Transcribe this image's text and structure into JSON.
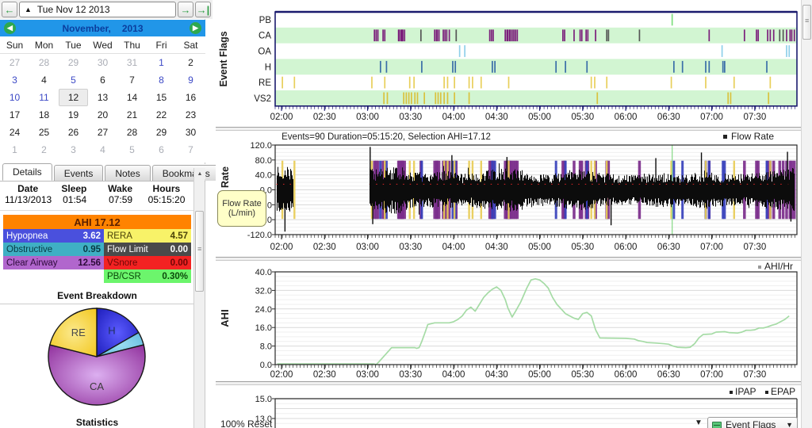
{
  "nav": {
    "prev_label": "←",
    "next_label": "→",
    "last_label": "→|",
    "combo_caret": "▲",
    "date_label": "Tue Nov 12 2013"
  },
  "calendar": {
    "prev_label": "◀",
    "next_label": "▶",
    "month_label": "November,",
    "year_label": "2013",
    "day_headers": [
      "Sun",
      "Mon",
      "Tue",
      "Wed",
      "Thu",
      "Fri",
      "Sat"
    ],
    "weeks": [
      [
        {
          "d": "27",
          "c": "muted"
        },
        {
          "d": "28",
          "c": "muted"
        },
        {
          "d": "29",
          "c": "muted"
        },
        {
          "d": "30",
          "c": "muted"
        },
        {
          "d": "31",
          "c": "muted"
        },
        {
          "d": "1",
          "c": "link"
        },
        {
          "d": "2",
          "c": "norm"
        }
      ],
      [
        {
          "d": "3",
          "c": "link"
        },
        {
          "d": "4",
          "c": "norm"
        },
        {
          "d": "5",
          "c": "link"
        },
        {
          "d": "6",
          "c": "norm"
        },
        {
          "d": "7",
          "c": "norm"
        },
        {
          "d": "8",
          "c": "link"
        },
        {
          "d": "9",
          "c": "link"
        }
      ],
      [
        {
          "d": "10",
          "c": "link"
        },
        {
          "d": "11",
          "c": "link"
        },
        {
          "d": "12",
          "c": "sel"
        },
        {
          "d": "13",
          "c": "norm"
        },
        {
          "d": "14",
          "c": "norm"
        },
        {
          "d": "15",
          "c": "norm"
        },
        {
          "d": "16",
          "c": "norm"
        }
      ],
      [
        {
          "d": "17",
          "c": "norm"
        },
        {
          "d": "18",
          "c": "norm"
        },
        {
          "d": "19",
          "c": "norm"
        },
        {
          "d": "20",
          "c": "norm"
        },
        {
          "d": "21",
          "c": "norm"
        },
        {
          "d": "22",
          "c": "norm"
        },
        {
          "d": "23",
          "c": "norm"
        }
      ],
      [
        {
          "d": "24",
          "c": "norm"
        },
        {
          "d": "25",
          "c": "norm"
        },
        {
          "d": "26",
          "c": "norm"
        },
        {
          "d": "27",
          "c": "norm"
        },
        {
          "d": "28",
          "c": "norm"
        },
        {
          "d": "29",
          "c": "norm"
        },
        {
          "d": "30",
          "c": "norm"
        }
      ],
      [
        {
          "d": "1",
          "c": "muted"
        },
        {
          "d": "2",
          "c": "muted"
        },
        {
          "d": "3",
          "c": "muted"
        },
        {
          "d": "4",
          "c": "muted"
        },
        {
          "d": "5",
          "c": "muted"
        },
        {
          "d": "6",
          "c": "muted"
        },
        {
          "d": "7",
          "c": "muted"
        }
      ]
    ]
  },
  "tabs": [
    {
      "label": "Details",
      "active": true
    },
    {
      "label": "Events",
      "active": false
    },
    {
      "label": "Notes",
      "active": false
    },
    {
      "label": "Bookmarks",
      "active": false
    }
  ],
  "details": {
    "summary_headers": [
      "Date",
      "Sleep",
      "Wake",
      "Hours"
    ],
    "summary_values": [
      "11/13/2013",
      "01:54",
      "07:59",
      "05:15:20"
    ],
    "ahi_label": "AHI 17.12",
    "ahi_bg": "#ff8300",
    "stats_left": [
      {
        "label": "Hypopnea",
        "value": "3.62",
        "bg": "#4a50dd",
        "fg": "#ffffff"
      },
      {
        "label": "Obstructive",
        "value": "0.95",
        "bg": "#3fb0c4",
        "fg": "#083a42"
      },
      {
        "label": "Clear Airway",
        "value": "12.56",
        "bg": "#b166cd",
        "fg": "#2d0a3a"
      }
    ],
    "stats_right": [
      {
        "label": "RERA",
        "value": "4.57",
        "bg": "#f8f268",
        "fg": "#4a4208"
      },
      {
        "label": "Flow Limit",
        "value": "0.00",
        "bg": "#4a4a4a",
        "fg": "#ffffff"
      },
      {
        "label": "VSnore",
        "value": "0.00",
        "bg": "#f32222",
        "fg": "#6e0606"
      },
      {
        "label": "PB/CSR",
        "value": "0.30%",
        "bg": "#6cf56c",
        "fg": "#0a4a0a"
      }
    ],
    "event_breakdown_title": "Event Breakdown",
    "statistics_title": "Statistics"
  },
  "bottom_bar": {
    "zoom_label": "100%",
    "reset_label": "Reset",
    "caret": "▼",
    "flag_combo_label": "Event Flags"
  },
  "chart_data": [
    {
      "id": "pie",
      "type": "pie",
      "title": "Event Breakdown",
      "slices": [
        {
          "label": "H",
          "value": 3.62,
          "c1": "#5b5bff",
          "c2": "#1d1dbb",
          "text": "#203060"
        },
        {
          "label": "",
          "value": 0.95,
          "c1": "#9adef2",
          "c2": "#5fb9dd",
          "text": "#333333"
        },
        {
          "label": "CA",
          "value": 12.56,
          "c1": "#dcaff0",
          "c2": "#90309c",
          "text": "#3a3a3a"
        },
        {
          "label": "RE",
          "value": 4.57,
          "c1": "#fbe98c",
          "c2": "#f3c71e",
          "text": "#4a4a4a"
        }
      ]
    },
    {
      "id": "event_flags",
      "type": "event-ticks",
      "ylabel": "Event Flags",
      "x_domain": [
        1.926,
        7.99
      ],
      "x_ticks": [
        {
          "t": 2.0,
          "label": "02:00"
        },
        {
          "t": 2.5,
          "label": "02:30"
        },
        {
          "t": 3.0,
          "label": "03:00"
        },
        {
          "t": 3.5,
          "label": "03:30"
        },
        {
          "t": 4.0,
          "label": "04:00"
        },
        {
          "t": 4.5,
          "label": "04:30"
        },
        {
          "t": 5.0,
          "label": "05:00"
        },
        {
          "t": 5.5,
          "label": "05:30"
        },
        {
          "t": 6.0,
          "label": "06:00"
        },
        {
          "t": 6.5,
          "label": "06:30"
        },
        {
          "t": 7.0,
          "label": "07:00"
        },
        {
          "t": 7.5,
          "label": "07:30"
        }
      ],
      "rows": [
        {
          "label": "PB",
          "color": "#7ede7e",
          "band": false,
          "ticks": [
            6.54
          ]
        },
        {
          "label": "CA",
          "color": "#7b1f7b",
          "band": true,
          "ticks": [
            3.08,
            3.1,
            3.12,
            3.18,
            3.2,
            3.36,
            3.37,
            3.39,
            3.4,
            3.41,
            3.43,
            3.62,
            3.78,
            3.8,
            3.81,
            3.83,
            3.88,
            3.9,
            3.92,
            3.95,
            4.03,
            4.42,
            4.44,
            4.46,
            4.6,
            4.62,
            4.63,
            4.65,
            4.66,
            4.68,
            4.7,
            4.72,
            4.74,
            5.27,
            5.29,
            5.4,
            5.47,
            5.49,
            5.54,
            5.56,
            5.65,
            5.78,
            5.8,
            6.16,
            6.97,
            7.38,
            7.52,
            7.54,
            7.65,
            7.68,
            7.72,
            7.79,
            7.83,
            7.87,
            7.91,
            7.93,
            7.96
          ],
          "gray": [
            3.62,
            4.03,
            5.78,
            5.8,
            6.16,
            7.79,
            7.83
          ]
        },
        {
          "label": "OA",
          "color": "#8fd0ea",
          "band": false,
          "ticks": [
            4.07,
            4.13,
            7.12,
            7.87,
            7.9
          ]
        },
        {
          "label": "H",
          "color": "#3a6ea8",
          "band": true,
          "ticks": [
            3.15,
            3.22,
            3.63,
            3.99,
            4.02,
            4.45,
            4.48,
            5.19,
            5.3,
            5.55,
            6.56,
            6.66,
            6.93,
            6.97,
            7.13,
            7.15,
            7.64
          ]
        },
        {
          "label": "RE",
          "color": "#e8cf5a",
          "band": false,
          "ticks": [
            2.01,
            2.15,
            3.05,
            3.2,
            3.49,
            3.54,
            3.89,
            3.93,
            4.01,
            4.18,
            4.22,
            4.32,
            4.64,
            5.6,
            5.64,
            5.78,
            6.53,
            6.93,
            7.26,
            7.68
          ]
        },
        {
          "label": "VS2",
          "color": "#d9c23e",
          "band": true,
          "ticks": [
            3.19,
            3.23,
            3.42,
            3.45,
            3.48,
            3.51,
            3.55,
            3.58,
            3.66,
            3.79,
            3.82,
            3.85,
            3.89,
            3.93,
            4.01,
            4.18,
            5.67,
            7.19,
            7.22,
            7.66
          ]
        }
      ]
    },
    {
      "id": "flow",
      "type": "waveform",
      "title": "Events=90 Duration=05:15:20, Selection AHI=17.12",
      "legend": "Flow Rate",
      "ylabel": "Flow Rate",
      "tooltip_line1": "Flow Rate",
      "tooltip_line2": "(L/min)",
      "ylim": [
        -120,
        120
      ],
      "y_ticks": [
        120.0,
        80.0,
        40.0,
        0.0,
        -40.0,
        -80.0,
        -120.0
      ],
      "segments": [
        {
          "start": 1.94,
          "end": 2.13,
          "amp": 62
        },
        {
          "start": 3.02,
          "end": 7.95,
          "amp": 48
        }
      ],
      "amp_points": [
        [
          3.02,
          70
        ],
        [
          3.1,
          55
        ],
        [
          3.2,
          62
        ],
        [
          3.35,
          66
        ],
        [
          3.5,
          50
        ],
        [
          3.7,
          46
        ],
        [
          3.9,
          52
        ],
        [
          4.1,
          42
        ],
        [
          4.3,
          50
        ],
        [
          4.5,
          56
        ],
        [
          4.7,
          62
        ],
        [
          4.9,
          48
        ],
        [
          5.1,
          42
        ],
        [
          5.3,
          52
        ],
        [
          5.5,
          56
        ],
        [
          5.7,
          46
        ],
        [
          5.9,
          42
        ],
        [
          6.1,
          40
        ],
        [
          6.3,
          46
        ],
        [
          6.5,
          48
        ],
        [
          6.7,
          42
        ],
        [
          6.9,
          52
        ],
        [
          7.1,
          46
        ],
        [
          7.3,
          42
        ],
        [
          7.5,
          46
        ],
        [
          7.7,
          52
        ],
        [
          7.95,
          60
        ]
      ],
      "pos_spikes": [
        [
          3.03,
          115
        ],
        [
          3.98,
          93
        ],
        [
          4.62,
          88
        ],
        [
          6.35,
          85
        ],
        [
          6.88,
          100
        ],
        [
          7.88,
          102
        ]
      ],
      "neg_spikes": [
        [
          2.04,
          -112
        ],
        [
          3.06,
          -92
        ],
        [
          5.83,
          -95
        ],
        [
          7.92,
          -85
        ]
      ],
      "baseline_marker_y": 15,
      "baseline_marker_color": "#cc2222",
      "pb_line_t": 6.54,
      "pb_line_color": "#8fdc8f"
    },
    {
      "id": "ahi",
      "type": "line",
      "legend": "AHI/Hr",
      "ylabel": "AHI",
      "color": "#a5dba5",
      "ylim": [
        0,
        40
      ],
      "y_ticks": [
        40.0,
        32.0,
        24.0,
        16.0,
        8.0,
        0.0
      ],
      "points": [
        [
          1.95,
          0.3
        ],
        [
          3.07,
          0.3
        ],
        [
          3.1,
          0.0
        ],
        [
          3.14,
          1.5
        ],
        [
          3.2,
          4.0
        ],
        [
          3.28,
          7.3
        ],
        [
          3.55,
          7.3
        ],
        [
          3.57,
          7.0
        ],
        [
          3.6,
          7.3
        ],
        [
          3.63,
          10.0
        ],
        [
          3.67,
          14.0
        ],
        [
          3.7,
          17.3
        ],
        [
          3.78,
          18.0
        ],
        [
          3.95,
          18.0
        ],
        [
          4.0,
          18.5
        ],
        [
          4.05,
          19.5
        ],
        [
          4.1,
          21.0
        ],
        [
          4.15,
          23.5
        ],
        [
          4.2,
          24.8
        ],
        [
          4.25,
          23.0
        ],
        [
          4.3,
          26.0
        ],
        [
          4.35,
          29.0
        ],
        [
          4.4,
          31.0
        ],
        [
          4.45,
          32.5
        ],
        [
          4.5,
          33.5
        ],
        [
          4.55,
          32.0
        ],
        [
          4.6,
          28.0
        ],
        [
          4.63,
          24.5
        ],
        [
          4.68,
          20.5
        ],
        [
          4.72,
          23.0
        ],
        [
          4.78,
          27.0
        ],
        [
          4.85,
          33.0
        ],
        [
          4.9,
          36.5
        ],
        [
          4.95,
          37.0
        ],
        [
          5.0,
          36.5
        ],
        [
          5.05,
          35.0
        ],
        [
          5.1,
          33.0
        ],
        [
          5.15,
          29.0
        ],
        [
          5.2,
          26.0
        ],
        [
          5.25,
          24.0
        ],
        [
          5.3,
          22.0
        ],
        [
          5.35,
          21.0
        ],
        [
          5.4,
          20.0
        ],
        [
          5.45,
          19.5
        ],
        [
          5.5,
          22.0
        ],
        [
          5.55,
          22.5
        ],
        [
          5.6,
          21.0
        ],
        [
          5.65,
          15.0
        ],
        [
          5.7,
          11.5
        ],
        [
          6.0,
          11.3
        ],
        [
          6.1,
          11.0
        ],
        [
          6.15,
          10.3
        ],
        [
          6.2,
          10.0
        ],
        [
          6.25,
          9.5
        ],
        [
          6.35,
          9.3
        ],
        [
          6.45,
          9.0
        ],
        [
          6.5,
          8.8
        ],
        [
          6.55,
          8.0
        ],
        [
          6.6,
          7.5
        ],
        [
          6.7,
          7.3
        ],
        [
          6.75,
          7.5
        ],
        [
          6.8,
          9.0
        ],
        [
          6.85,
          11.5
        ],
        [
          6.9,
          13.0
        ],
        [
          7.0,
          13.2
        ],
        [
          7.05,
          14.0
        ],
        [
          7.15,
          14.2
        ],
        [
          7.2,
          13.8
        ],
        [
          7.3,
          13.6
        ],
        [
          7.35,
          14.0
        ],
        [
          7.4,
          14.8
        ],
        [
          7.45,
          14.8
        ],
        [
          7.5,
          15.0
        ],
        [
          7.55,
          15.8
        ],
        [
          7.6,
          15.8
        ],
        [
          7.65,
          16.3
        ],
        [
          7.7,
          17.0
        ],
        [
          7.75,
          17.5
        ],
        [
          7.8,
          18.5
        ],
        [
          7.85,
          19.5
        ],
        [
          7.9,
          21.0
        ]
      ]
    },
    {
      "id": "pressure",
      "type": "line",
      "legend_items": [
        "IPAP",
        "EPAP"
      ],
      "y_ticks_visible": [
        15.0,
        13.0
      ]
    }
  ]
}
